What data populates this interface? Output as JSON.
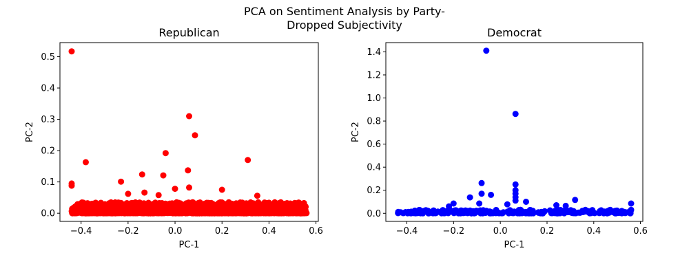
{
  "figure": {
    "title_line1": "PCA on Sentiment Analysis by Party-",
    "title_line2": "Dropped Subjectivity"
  },
  "chart_data": [
    {
      "type": "scatter",
      "title": "Republican",
      "xlabel": "PC-1",
      "ylabel": "PC-2",
      "xlim": [
        -0.49,
        0.61
      ],
      "ylim": [
        -0.026,
        0.545
      ],
      "xticks": [
        -0.4,
        -0.2,
        0.0,
        0.2,
        0.4,
        0.6
      ],
      "xtick_labels": [
        "−0.4",
        "−0.2",
        "0.0",
        "0.2",
        "0.4",
        "0.6"
      ],
      "yticks": [
        0.0,
        0.1,
        0.2,
        0.3,
        0.4,
        0.5
      ],
      "ytick_labels": [
        "0.0",
        "0.1",
        "0.2",
        "0.3",
        "0.4",
        "0.5"
      ],
      "color": "#ff0000",
      "grid": false,
      "outliers": [
        {
          "x": -0.44,
          "y": 0.517
        },
        {
          "x": 0.06,
          "y": 0.31
        },
        {
          "x": 0.085,
          "y": 0.249
        },
        {
          "x": -0.04,
          "y": 0.192
        },
        {
          "x": 0.31,
          "y": 0.17
        },
        {
          "x": -0.38,
          "y": 0.163
        },
        {
          "x": 0.055,
          "y": 0.137
        },
        {
          "x": -0.14,
          "y": 0.124
        },
        {
          "x": -0.05,
          "y": 0.121
        },
        {
          "x": -0.23,
          "y": 0.101
        },
        {
          "x": -0.44,
          "y": 0.095
        },
        {
          "x": -0.44,
          "y": 0.088
        },
        {
          "x": 0.06,
          "y": 0.082
        },
        {
          "x": 0.0,
          "y": 0.078
        },
        {
          "x": 0.2,
          "y": 0.075
        },
        {
          "x": -0.13,
          "y": 0.066
        },
        {
          "x": -0.2,
          "y": 0.062
        },
        {
          "x": 0.35,
          "y": 0.056
        },
        {
          "x": -0.07,
          "y": 0.058
        }
      ],
      "band": {
        "x_range": [
          -0.44,
          0.56
        ],
        "y_range": [
          0.0,
          0.035
        ],
        "count": 1600
      }
    },
    {
      "type": "scatter",
      "title": "Democrat",
      "xlabel": "PC-1",
      "ylabel": "PC-2",
      "xlim": [
        -0.49,
        0.61
      ],
      "ylim": [
        -0.07,
        1.48
      ],
      "xticks": [
        -0.4,
        -0.2,
        0.0,
        0.2,
        0.4,
        0.6
      ],
      "xtick_labels": [
        "−0.4",
        "−0.2",
        "0.0",
        "0.2",
        "0.4",
        "0.6"
      ],
      "yticks": [
        0.0,
        0.2,
        0.4,
        0.6,
        0.8,
        1.0,
        1.2,
        1.4
      ],
      "ytick_labels": [
        "0.0",
        "0.2",
        "0.4",
        "0.6",
        "0.8",
        "1.0",
        "1.2",
        "1.4"
      ],
      "color": "#0000ff",
      "grid": false,
      "outliers": [
        {
          "x": -0.06,
          "y": 1.41
        },
        {
          "x": 0.065,
          "y": 0.862
        },
        {
          "x": -0.08,
          "y": 0.262
        },
        {
          "x": 0.065,
          "y": 0.25
        },
        {
          "x": 0.065,
          "y": 0.2
        },
        {
          "x": -0.08,
          "y": 0.17
        },
        {
          "x": 0.065,
          "y": 0.17
        },
        {
          "x": -0.04,
          "y": 0.16
        },
        {
          "x": 0.065,
          "y": 0.14
        },
        {
          "x": -0.13,
          "y": 0.138
        },
        {
          "x": 0.32,
          "y": 0.116
        },
        {
          "x": 0.065,
          "y": 0.11
        },
        {
          "x": 0.11,
          "y": 0.1
        },
        {
          "x": 0.56,
          "y": 0.085
        },
        {
          "x": -0.2,
          "y": 0.085
        },
        {
          "x": 0.03,
          "y": 0.078
        },
        {
          "x": -0.09,
          "y": 0.085
        },
        {
          "x": 0.24,
          "y": 0.07
        },
        {
          "x": 0.28,
          "y": 0.065
        },
        {
          "x": -0.22,
          "y": 0.06
        },
        {
          "x": 0.56,
          "y": 0.03
        }
      ],
      "band": {
        "x_range": [
          -0.44,
          0.56
        ],
        "y_range": [
          0.0,
          0.03
        ],
        "count": 260
      }
    }
  ]
}
